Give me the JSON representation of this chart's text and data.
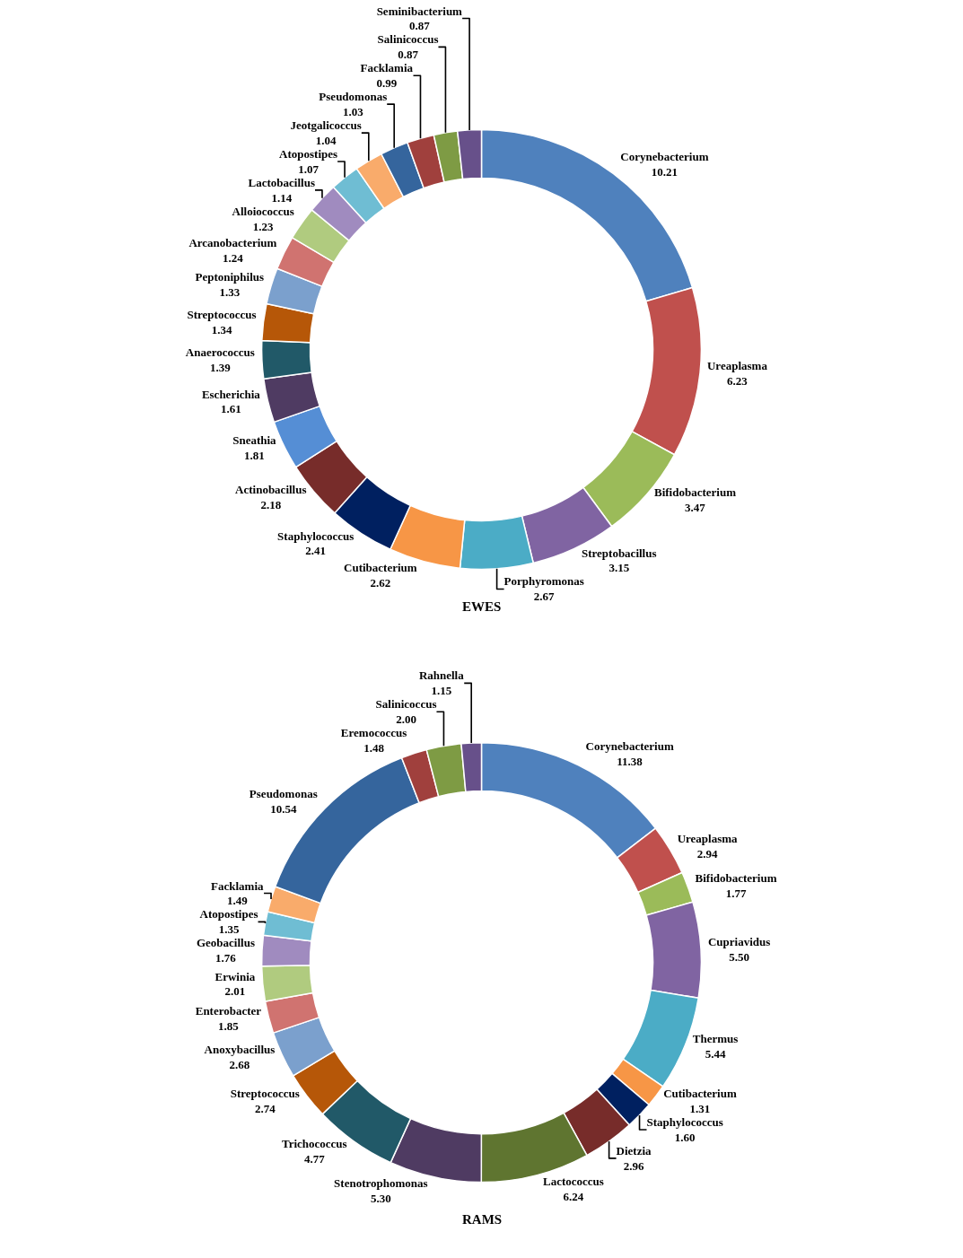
{
  "chart_data": [
    {
      "type": "donut",
      "title": "EWES",
      "categories": [
        "Corynebacterium",
        "Ureaplasma",
        "Bifidobacterium",
        "Streptobacillus",
        "Porphyromonas",
        "Cutibacterium",
        "Staphylococcus",
        "Actinobacillus",
        "Sneathia",
        "Escherichia",
        "Anaerococcus",
        "Streptococcus",
        "Peptoniphilus",
        "Arcanobacterium",
        "Alloiococcus",
        "Lactobacillus",
        "Atopostipes",
        "Jeotgalicoccus",
        "Pseudomonas",
        "Facklamia",
        "Salinicoccus",
        "Seminibacterium"
      ],
      "values": [
        10.21,
        6.23,
        3.47,
        3.15,
        2.67,
        2.62,
        2.41,
        2.18,
        1.81,
        1.61,
        1.39,
        1.34,
        1.33,
        1.24,
        1.23,
        1.14,
        1.07,
        1.04,
        1.03,
        0.99,
        0.87,
        0.87
      ],
      "value_labels": [
        "10.21",
        "6.23",
        "3.47",
        "3.15",
        "2.67",
        "2.62",
        "2.41",
        "2.18",
        "1.81",
        "1.61",
        "1.39",
        "1.34",
        "1.33",
        "1.24",
        "1.23",
        "1.14",
        "1.07",
        "1.04",
        "1.03",
        "0.99",
        "0.87",
        "0.87"
      ],
      "colors": [
        "#4f81bd",
        "#c0504d",
        "#9bbb59",
        "#8064a2",
        "#4bacc6",
        "#f79646",
        "#002060",
        "#772c2a",
        "#558ed5",
        "#4f3b62",
        "#215968",
        "#b65708",
        "#7ba0cd",
        "#d07370",
        "#b0cb7f",
        "#a08bbf",
        "#6fbdd3",
        "#f9ab6b",
        "#35659d",
        "#a0403d",
        "#7e9b44",
        "#67508a"
      ],
      "legend": false
    },
    {
      "type": "donut",
      "title": "RAMS",
      "categories": [
        "Corynebacterium",
        "Ureaplasma",
        "Bifidobacterium",
        "Cupriavidus",
        "Thermus",
        "Cutibacterium",
        "Staphylococcus",
        "Dietzia",
        "Lactococcus",
        "Stenotrophomonas",
        "Trichococcus",
        "Streptococcus",
        "Anoxybacillus",
        "Enterobacter",
        "Erwinia",
        "Geobacillus",
        "Atopostipes",
        "Facklamia",
        "Pseudomonas",
        "Eremococcus",
        "Salinicoccus",
        "Rahnella"
      ],
      "values": [
        11.38,
        2.94,
        1.77,
        5.5,
        5.44,
        1.31,
        1.6,
        2.96,
        6.24,
        5.3,
        4.77,
        2.74,
        2.68,
        1.85,
        2.01,
        1.76,
        1.35,
        1.49,
        10.54,
        1.48,
        2.0,
        1.15
      ],
      "value_labels": [
        "11.38",
        "2.94",
        "1.77",
        "5.50",
        "5.44",
        "1.31",
        "1.60",
        "2.96",
        "6.24",
        "5.30",
        "4.77",
        "2.74",
        "2.68",
        "1.85",
        "2.01",
        "1.76",
        "1.35",
        "1.49",
        "10.54",
        "1.48",
        "2.00",
        "1.15"
      ],
      "colors": [
        "#4f81bd",
        "#c0504d",
        "#9bbb59",
        "#8064a2",
        "#4bacc6",
        "#f79646",
        "#002060",
        "#772c2a",
        "#5f7530",
        "#4f3b62",
        "#215968",
        "#b65708",
        "#7ba0cd",
        "#d07370",
        "#b0cb7f",
        "#a08bbf",
        "#6fbdd3",
        "#f9ab6b",
        "#35659d",
        "#a0403d",
        "#7e9b44",
        "#67508a"
      ],
      "legend": false
    }
  ]
}
